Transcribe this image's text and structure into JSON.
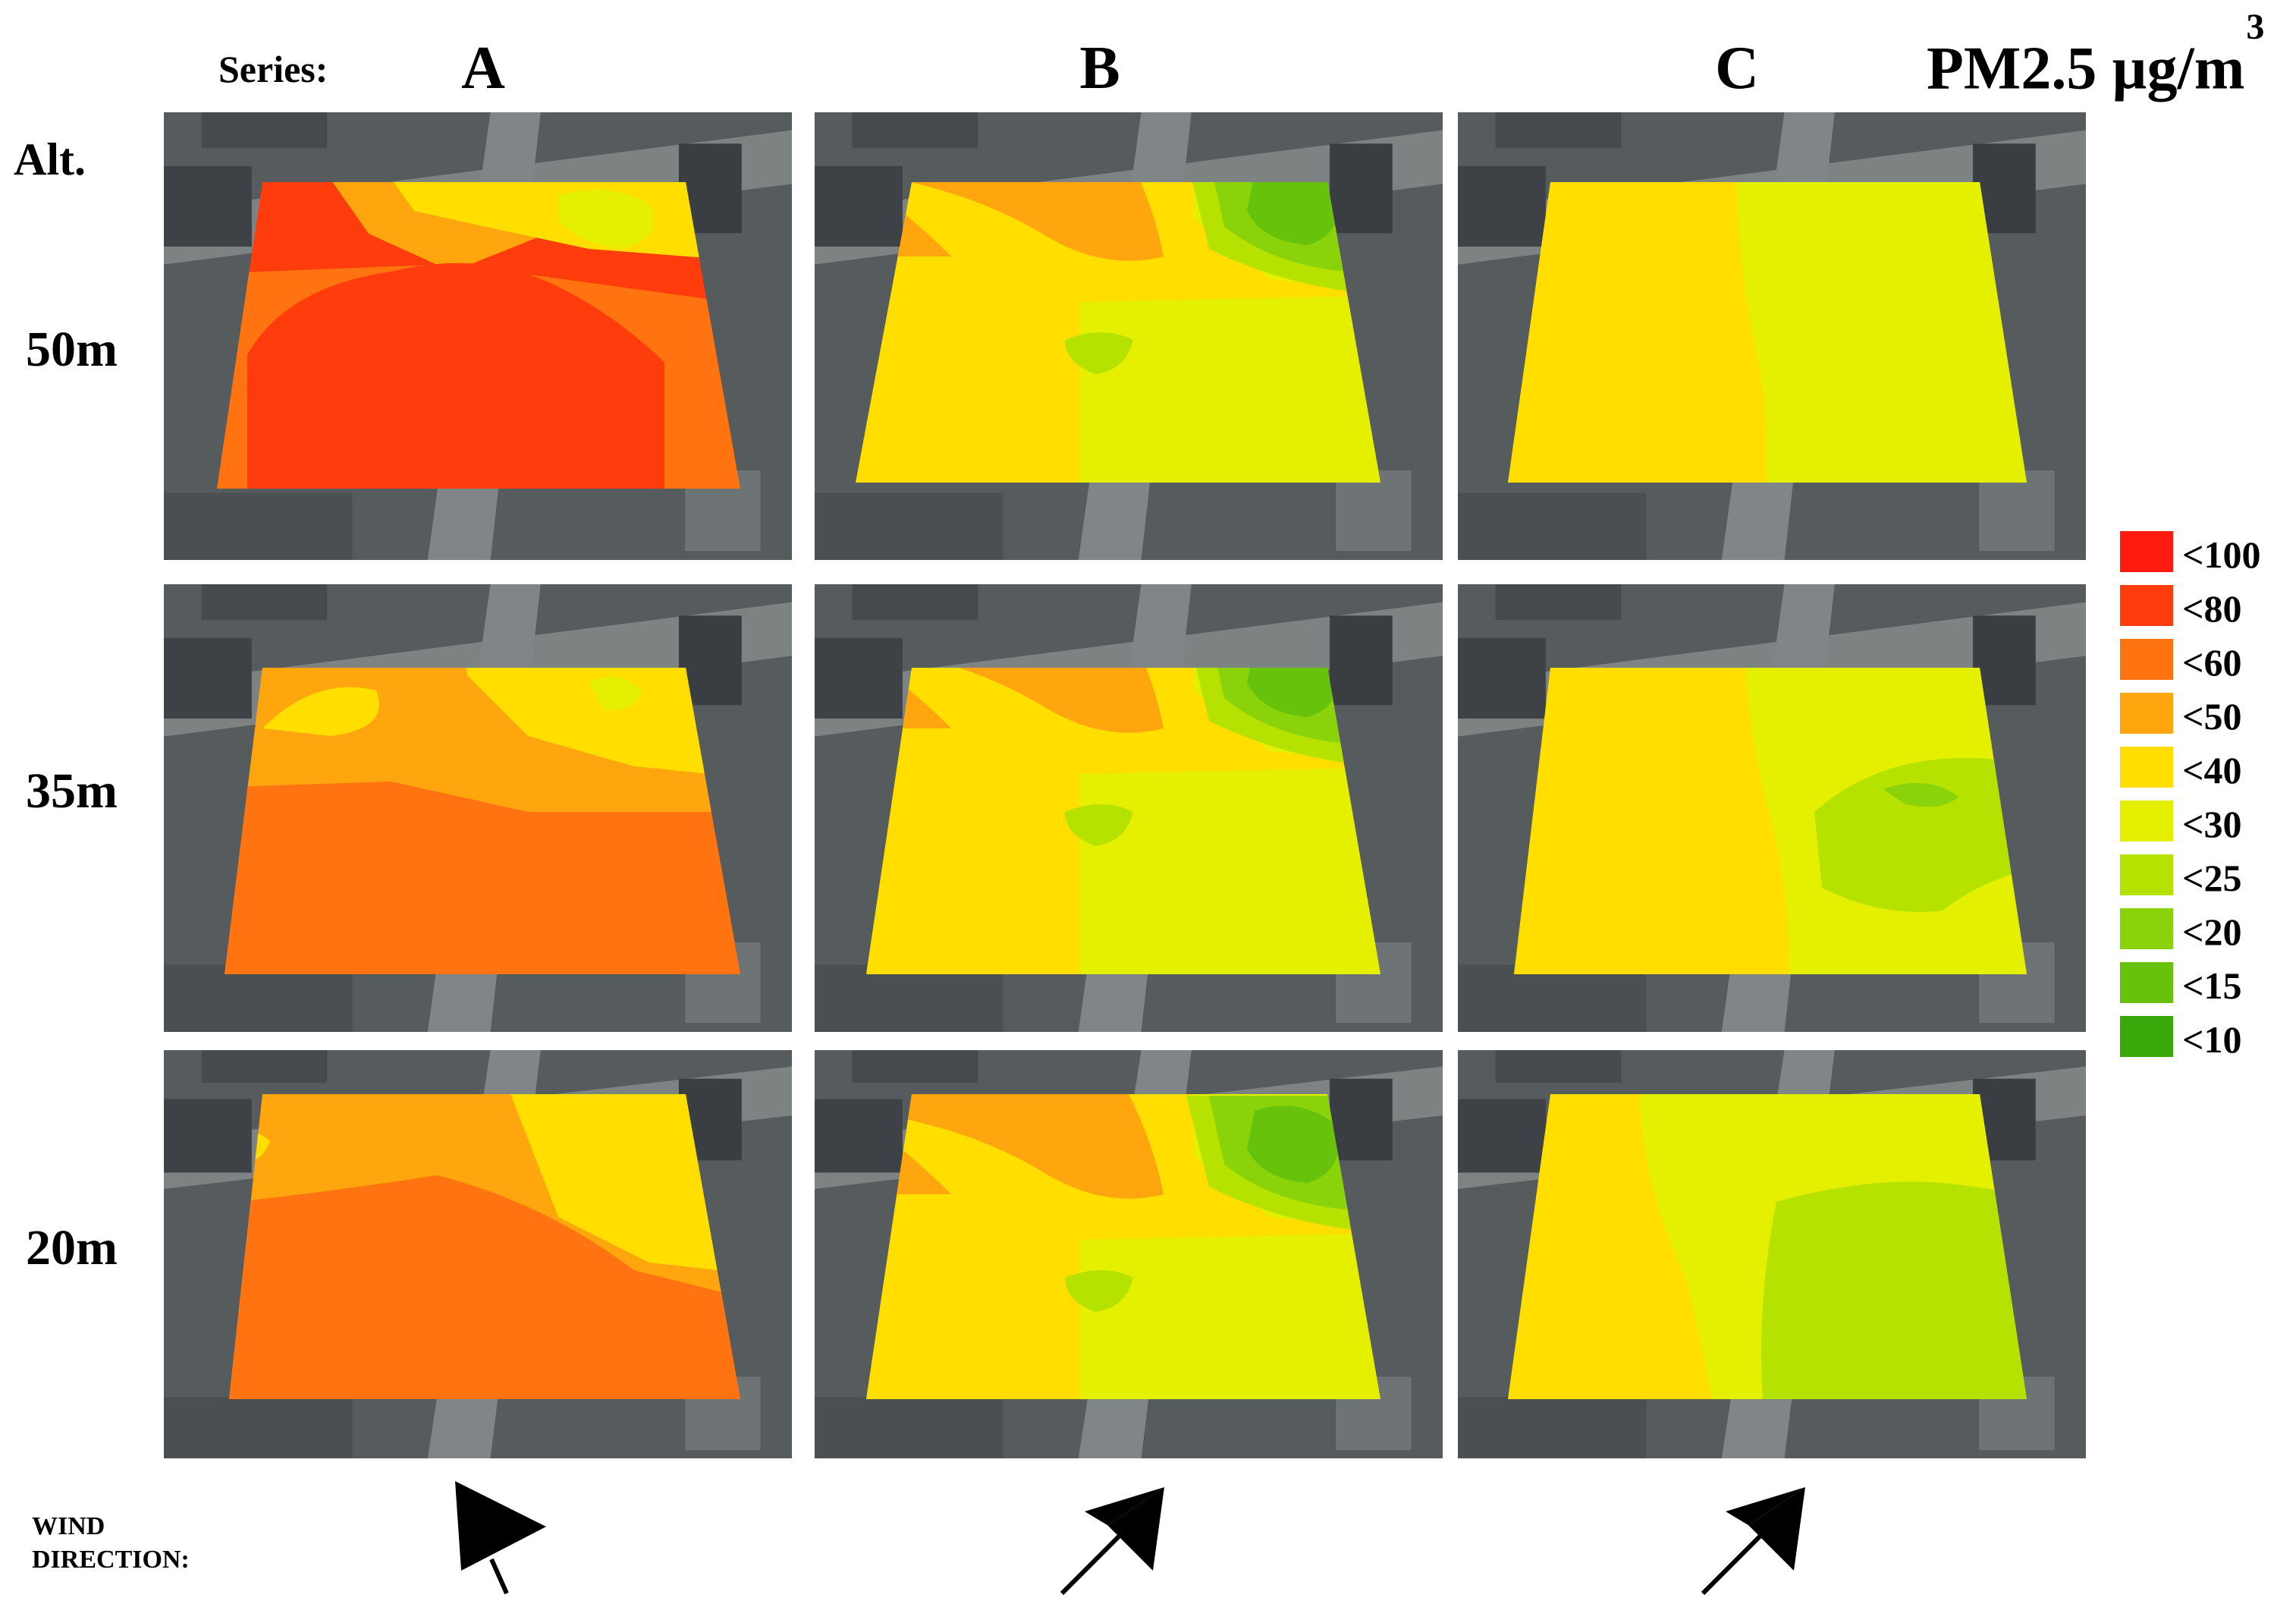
{
  "header": {
    "series_label": "Series:",
    "columns": [
      "A",
      "B",
      "C"
    ],
    "unit_text": "PM2.5 µg/m",
    "unit_exponent": "3"
  },
  "rows": {
    "axis_label": "Alt.",
    "labels": [
      "50m",
      "35m",
      "20m"
    ]
  },
  "legend": {
    "items": [
      {
        "label": "<100",
        "color": "#ff1a10"
      },
      {
        "label": "<80",
        "color": "#ff3c0c"
      },
      {
        "label": "<60",
        "color": "#ff7410"
      },
      {
        "label": "<50",
        "color": "#ffa50e"
      },
      {
        "label": "<40",
        "color": "#ffde00"
      },
      {
        "label": "<30",
        "color": "#e4f000"
      },
      {
        "label": "<25",
        "color": "#b6e200"
      },
      {
        "label": "<20",
        "color": "#8ad20a"
      },
      {
        "label": "<15",
        "color": "#66c20a"
      },
      {
        "label": "<10",
        "color": "#3aa80a"
      }
    ]
  },
  "wind": {
    "label": "WIND DIRECTION:",
    "arrows": [
      "wind-arrow-icon",
      "wind-arrow-icon",
      "wind-arrow-icon"
    ]
  },
  "map": {
    "background": "aerial-satellite-photo",
    "overlay": "PM2.5 concentration contour",
    "panels": [
      {
        "series": "A",
        "altitude": "50m",
        "dominant_class": "<80"
      },
      {
        "series": "B",
        "altitude": "50m",
        "dominant_class": "<40"
      },
      {
        "series": "C",
        "altitude": "50m",
        "dominant_class": "<30"
      },
      {
        "series": "A",
        "altitude": "35m",
        "dominant_class": "<60"
      },
      {
        "series": "B",
        "altitude": "35m",
        "dominant_class": "<40"
      },
      {
        "series": "C",
        "altitude": "35m",
        "dominant_class": "<40"
      },
      {
        "series": "A",
        "altitude": "20m",
        "dominant_class": "<60"
      },
      {
        "series": "B",
        "altitude": "20m",
        "dominant_class": "<40"
      },
      {
        "series": "C",
        "altitude": "20m",
        "dominant_class": "<30"
      }
    ]
  }
}
